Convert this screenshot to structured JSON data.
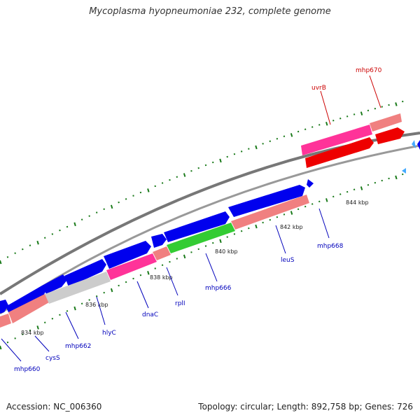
{
  "title": "Mycoplasma hyopneumoniae 232, complete genome",
  "footer": {
    "accession": "Accession: NC_006360",
    "stats": "Topology: circular; Length: 892,758 bp; Genes: 726"
  },
  "colors": {
    "cds_forward": "#0000ee",
    "cds_reverse": "#ee0000",
    "backbone": "#888888",
    "tick": "#1a7a1a",
    "label_forward": "#0000bb",
    "label_reverse": "#cc0000",
    "pink": "#ff3399",
    "salmon": "#f08080",
    "gray": "#cccccc",
    "green": "#33cc33"
  },
  "tick_labels": [
    "834 kbp",
    "836 kbp",
    "838 kbp",
    "840 kbp",
    "842 kbp",
    "844 kbp"
  ],
  "gene_labels": [
    {
      "id": "mhp660",
      "text": "mhp660",
      "strand": "forward"
    },
    {
      "id": "cysS",
      "text": "cysS",
      "strand": "forward"
    },
    {
      "id": "mhp662",
      "text": "mhp662",
      "strand": "forward"
    },
    {
      "id": "hlyC",
      "text": "hlyC",
      "strand": "forward"
    },
    {
      "id": "dnaC",
      "text": "dnaC",
      "strand": "forward"
    },
    {
      "id": "rplI",
      "text": "rplI",
      "strand": "forward"
    },
    {
      "id": "mhp666",
      "text": "mhp666",
      "strand": "forward"
    },
    {
      "id": "leuS",
      "text": "leuS",
      "strand": "forward"
    },
    {
      "id": "mhp668",
      "text": "mhp668",
      "strand": "forward"
    },
    {
      "id": "uvrB",
      "text": "uvrB",
      "strand": "reverse"
    },
    {
      "id": "mhp670",
      "text": "mhp670",
      "strand": "reverse"
    }
  ]
}
